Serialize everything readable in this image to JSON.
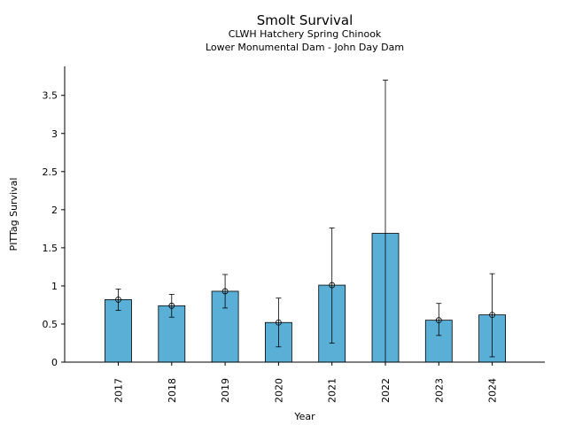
{
  "chart_data": {
    "type": "bar",
    "title": "Smolt Survival",
    "subtitle_lines": [
      "CLWH Hatchery Spring Chinook",
      "Lower Monumental Dam - John Day Dam"
    ],
    "xlabel": "Year",
    "ylabel": "PITTag Survival",
    "categories": [
      "2017",
      "2018",
      "2019",
      "2020",
      "2021",
      "2022",
      "2023",
      "2024"
    ],
    "values": [
      0.82,
      0.74,
      0.93,
      0.52,
      1.01,
      1.69,
      0.55,
      0.62
    ],
    "error_low": [
      0.68,
      0.59,
      0.71,
      0.2,
      0.25,
      0.0,
      0.35,
      0.07
    ],
    "error_high": [
      0.96,
      0.89,
      1.15,
      0.84,
      1.76,
      3.7,
      0.77,
      1.16
    ],
    "point_markers": [
      true,
      true,
      true,
      true,
      true,
      false,
      true,
      true
    ],
    "ylim": [
      0,
      3.88
    ],
    "yticks": [
      0,
      0.5,
      1,
      1.5,
      2,
      2.5,
      3,
      3.5
    ],
    "ytick_labels": [
      "0",
      "0.5",
      "1",
      "1.5",
      "2",
      "2.5",
      "3",
      "3.5"
    ],
    "bar_color": "#5aafd6",
    "edge_color": "#000000",
    "grid": false,
    "legend": "none"
  }
}
